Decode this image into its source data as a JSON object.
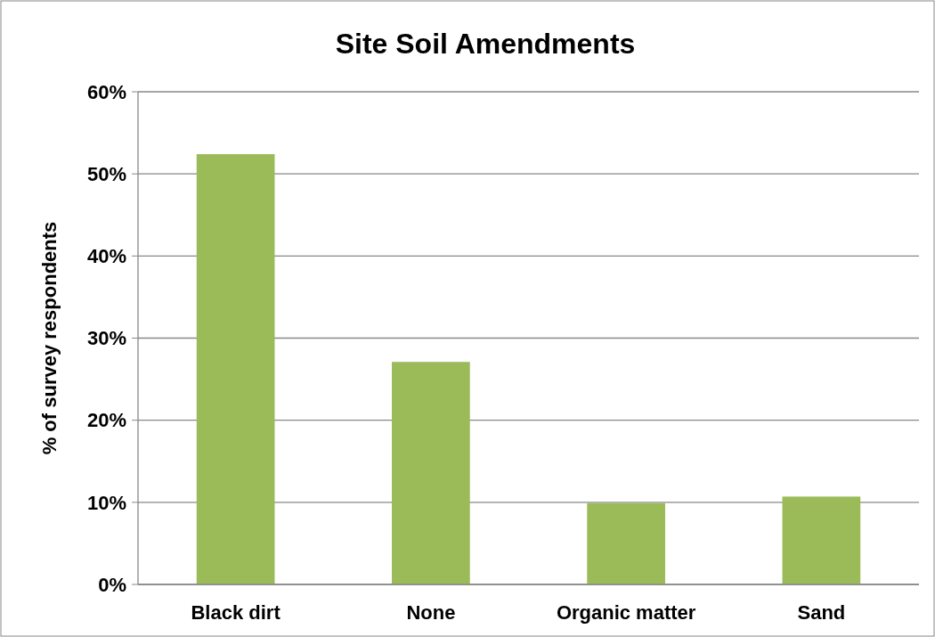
{
  "chart_data": {
    "type": "bar",
    "title": "Site Soil Amendments",
    "ylabel": "% of survey respondents",
    "categories": [
      "Black dirt",
      "None",
      "Organic matter",
      "Sand"
    ],
    "values": [
      52.4,
      27.1,
      9.9,
      10.7
    ],
    "color": "#9bbb59",
    "ylim": [
      0,
      60
    ],
    "yticks": [
      {
        "value": 0,
        "label": "0%"
      },
      {
        "value": 10,
        "label": "10%"
      },
      {
        "value": 20,
        "label": "20%"
      },
      {
        "value": 30,
        "label": "30%"
      },
      {
        "value": 40,
        "label": "40%"
      },
      {
        "value": 50,
        "label": "50%"
      },
      {
        "value": 60,
        "label": "60%"
      }
    ],
    "grid": "y"
  }
}
